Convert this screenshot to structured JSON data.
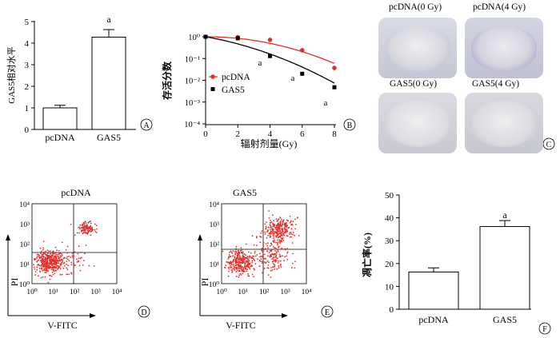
{
  "panels": {
    "A": {
      "letter": "A",
      "ylabel": "GAS5相对水平",
      "yticks": [
        "0",
        "1",
        "2",
        "3",
        "4",
        "5"
      ],
      "categories": [
        "pcDNA",
        "GAS5"
      ],
      "sig": "a"
    },
    "B": {
      "letter": "B",
      "ylabel": "存活分数",
      "xlabel": "辐射剂量(Gy)",
      "xticks": [
        "0",
        "2",
        "4",
        "6",
        "8"
      ],
      "yticks": [
        "10⁻⁴",
        "10⁻³",
        "10⁻²",
        "10⁻¹",
        "10⁰"
      ],
      "legend": [
        "pcDNA",
        "GAS5"
      ],
      "sig": "a"
    },
    "C": {
      "letter": "C",
      "captions": [
        "pcDNA(0 Gy)",
        "pcDNA(4 Gy)",
        "GAS5(0 Gy)",
        "GAS5(4 Gy)"
      ]
    },
    "D": {
      "letter": "D",
      "title": "pcDNA",
      "ylabel": "PI",
      "xlabel": "V-FITC",
      "ticks": [
        "10⁰",
        "10¹",
        "10²",
        "10³",
        "10⁴"
      ]
    },
    "E": {
      "letter": "E",
      "title": "GAS5",
      "ylabel": "PI",
      "xlabel": "V-FITC",
      "ticks": [
        "10⁰",
        "10¹",
        "10²",
        "10³",
        "10⁴"
      ]
    },
    "F": {
      "letter": "F",
      "ylabel": "凋亡率(%)",
      "yticks": [
        "0",
        "10",
        "20",
        "30",
        "40",
        "50"
      ],
      "categories": [
        "pcDNA",
        "GAS5"
      ],
      "sig": "a"
    }
  },
  "colors": {
    "red": "#e0302b",
    "black": "#000000",
    "bar_fill": "#ffffff"
  },
  "chart_data": [
    {
      "panel": "A",
      "type": "bar",
      "categories": [
        "pcDNA",
        "GAS5"
      ],
      "values": [
        1.0,
        4.28
      ],
      "errors": [
        0.12,
        0.35
      ],
      "ylabel": "GAS5相对水平",
      "ylim": [
        0,
        5
      ]
    },
    {
      "panel": "B",
      "type": "line",
      "xlabel": "辐射剂量(Gy)",
      "ylabel": "存活分数",
      "xlim": [
        0,
        8
      ],
      "ylim": [
        0.0001,
        1
      ],
      "yscale": "log",
      "legend_position": "left",
      "series": [
        {
          "name": "pcDNA",
          "color": "#e0302b",
          "marker": "circle",
          "x": [
            0,
            2,
            4,
            6,
            8
          ],
          "y": [
            1.0,
            0.95,
            0.72,
            0.24,
            0.037
          ]
        },
        {
          "name": "GAS5",
          "color": "#000000",
          "marker": "square",
          "x": [
            0,
            2,
            4,
            6,
            8
          ],
          "y": [
            1.0,
            0.85,
            0.13,
            0.02,
            0.0048
          ]
        }
      ]
    },
    {
      "panel": "D",
      "type": "scatter",
      "title": "pcDNA",
      "xlabel": "V-FITC",
      "ylabel": "PI",
      "xscale": "log",
      "yscale": "log",
      "xlim": [
        1,
        10000
      ],
      "ylim": [
        1,
        10000
      ],
      "clusters": [
        {
          "center": [
            7,
            12
          ],
          "spread": [
            0.35,
            0.3
          ],
          "count": 420
        },
        {
          "center": [
            400,
            600
          ],
          "spread": [
            0.22,
            0.18
          ],
          "count": 110
        },
        {
          "center": [
            120,
            15
          ],
          "spread": [
            0.35,
            0.35
          ],
          "count": 40
        }
      ]
    },
    {
      "panel": "E",
      "type": "scatter",
      "title": "GAS5",
      "xlabel": "V-FITC",
      "ylabel": "PI",
      "xscale": "log",
      "yscale": "log",
      "xlim": [
        1,
        10000
      ],
      "ylim": [
        1,
        10000
      ],
      "clusters": [
        {
          "center": [
            8,
            12
          ],
          "spread": [
            0.33,
            0.3
          ],
          "count": 300
        },
        {
          "center": [
            500,
            500
          ],
          "spread": [
            0.35,
            0.3
          ],
          "count": 260
        },
        {
          "center": [
            300,
            18
          ],
          "spread": [
            0.35,
            0.35
          ],
          "count": 110
        },
        {
          "center": [
            150,
            80
          ],
          "spread": [
            0.4,
            0.4
          ],
          "count": 60
        }
      ]
    },
    {
      "panel": "F",
      "type": "bar",
      "categories": [
        "pcDNA",
        "GAS5"
      ],
      "values": [
        16.3,
        36.2
      ],
      "errors": [
        1.8,
        2.6
      ],
      "ylabel": "凋亡率(%)",
      "ylim": [
        0,
        50
      ]
    }
  ]
}
